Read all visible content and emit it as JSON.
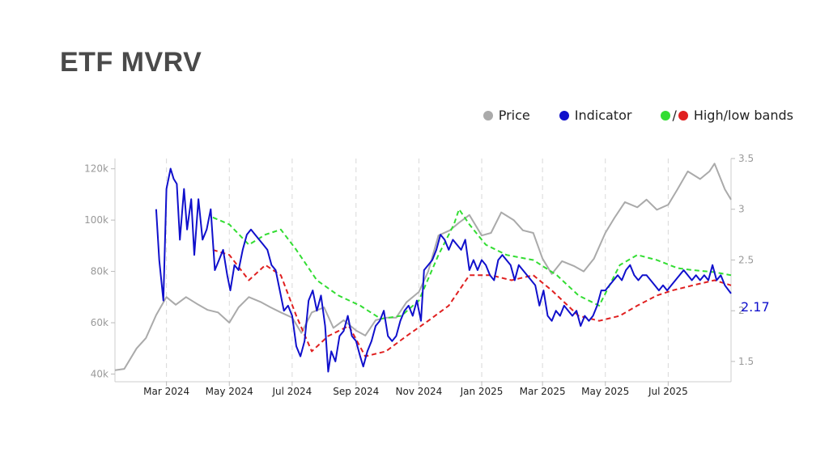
{
  "title": "ETF MVRV",
  "legend": {
    "price": "Price",
    "indicator": "Indicator",
    "bands": "High/low bands",
    "separator": "/"
  },
  "colors": {
    "price": "#aaaaaa",
    "indicator": "#1010cc",
    "high_band": "#33dd33",
    "low_band": "#e02020"
  },
  "chart_data": {
    "type": "line",
    "x_start": "2024-01-11",
    "x_end": "2025-08-31",
    "x_tick_labels": [
      "Mar 2024",
      "May 2024",
      "Jul 2024",
      "Sep 2024",
      "Nov 2024",
      "Jan 2025",
      "Mar 2025",
      "May 2025",
      "Jul 2025"
    ],
    "x_ticks": [
      "2024-03-01",
      "2024-05-01",
      "2024-07-01",
      "2024-09-01",
      "2024-11-01",
      "2025-01-01",
      "2025-03-01",
      "2025-05-01",
      "2025-07-01"
    ],
    "left_axis": {
      "label": "",
      "range": [
        37000,
        124000
      ],
      "ticks": [
        40000,
        60000,
        80000,
        100000,
        120000
      ],
      "tick_labels": [
        "40k",
        "60k",
        "80k",
        "100k",
        "120k"
      ]
    },
    "right_axis": {
      "label": "",
      "range": [
        1.3,
        3.5
      ],
      "ticks": [
        1.5,
        2,
        2.5,
        3,
        3.5
      ],
      "tick_labels": [
        "1.5",
        "2",
        "2.5",
        "3",
        "3.5"
      ]
    },
    "last_value_label": "2.17",
    "grid": "vertical dashed",
    "legend_position": "top-right",
    "series": [
      {
        "name": "Price",
        "axis": "left",
        "points": [
          [
            "2024-01-11",
            41500
          ],
          [
            "2024-01-20",
            42000
          ],
          [
            "2024-02-01",
            50000
          ],
          [
            "2024-02-10",
            54000
          ],
          [
            "2024-02-20",
            63000
          ],
          [
            "2024-03-01",
            70000
          ],
          [
            "2024-03-10",
            67000
          ],
          [
            "2024-03-20",
            70000
          ],
          [
            "2024-04-01",
            67000
          ],
          [
            "2024-04-10",
            65000
          ],
          [
            "2024-04-20",
            64000
          ],
          [
            "2024-05-01",
            60000
          ],
          [
            "2024-05-10",
            66000
          ],
          [
            "2024-05-20",
            70000
          ],
          [
            "2024-06-01",
            68000
          ],
          [
            "2024-06-10",
            66000
          ],
          [
            "2024-06-20",
            64000
          ],
          [
            "2024-07-01",
            62000
          ],
          [
            "2024-07-10",
            56000
          ],
          [
            "2024-07-20",
            64000
          ],
          [
            "2024-08-01",
            66000
          ],
          [
            "2024-08-10",
            58000
          ],
          [
            "2024-08-20",
            61000
          ],
          [
            "2024-09-01",
            57000
          ],
          [
            "2024-09-10",
            55000
          ],
          [
            "2024-09-20",
            61000
          ],
          [
            "2024-10-01",
            62000
          ],
          [
            "2024-10-10",
            62000
          ],
          [
            "2024-10-20",
            68000
          ],
          [
            "2024-11-01",
            72000
          ],
          [
            "2024-11-10",
            80000
          ],
          [
            "2024-11-20",
            94000
          ],
          [
            "2024-12-01",
            96000
          ],
          [
            "2024-12-10",
            99000
          ],
          [
            "2024-12-20",
            102000
          ],
          [
            "2025-01-01",
            94000
          ],
          [
            "2025-01-10",
            95000
          ],
          [
            "2025-01-20",
            103000
          ],
          [
            "2025-02-01",
            100000
          ],
          [
            "2025-02-10",
            96000
          ],
          [
            "2025-02-20",
            95000
          ],
          [
            "2025-03-01",
            85000
          ],
          [
            "2025-03-10",
            79000
          ],
          [
            "2025-03-20",
            84000
          ],
          [
            "2025-04-01",
            82000
          ],
          [
            "2025-04-10",
            80000
          ],
          [
            "2025-04-20",
            85000
          ],
          [
            "2025-05-01",
            95000
          ],
          [
            "2025-05-10",
            101000
          ],
          [
            "2025-05-20",
            107000
          ],
          [
            "2025-06-01",
            105000
          ],
          [
            "2025-06-10",
            108000
          ],
          [
            "2025-06-20",
            104000
          ],
          [
            "2025-07-01",
            106000
          ],
          [
            "2025-07-10",
            112000
          ],
          [
            "2025-07-20",
            119000
          ],
          [
            "2025-08-01",
            116000
          ],
          [
            "2025-08-10",
            119000
          ],
          [
            "2025-08-15",
            122000
          ],
          [
            "2025-08-25",
            112000
          ],
          [
            "2025-08-31",
            108000
          ]
        ]
      },
      {
        "name": "Indicator",
        "axis": "right",
        "points": [
          [
            "2024-02-20",
            3.0
          ],
          [
            "2024-02-23",
            2.5
          ],
          [
            "2024-02-27",
            2.1
          ],
          [
            "2024-03-01",
            3.2
          ],
          [
            "2024-03-05",
            3.4
          ],
          [
            "2024-03-08",
            3.3
          ],
          [
            "2024-03-11",
            3.25
          ],
          [
            "2024-03-14",
            2.7
          ],
          [
            "2024-03-18",
            3.2
          ],
          [
            "2024-03-21",
            2.8
          ],
          [
            "2024-03-25",
            3.1
          ],
          [
            "2024-03-28",
            2.55
          ],
          [
            "2024-04-01",
            3.1
          ],
          [
            "2024-04-05",
            2.7
          ],
          [
            "2024-04-09",
            2.8
          ],
          [
            "2024-04-13",
            3.0
          ],
          [
            "2024-04-17",
            2.4
          ],
          [
            "2024-04-21",
            2.5
          ],
          [
            "2024-04-25",
            2.6
          ],
          [
            "2024-04-29",
            2.35
          ],
          [
            "2024-05-02",
            2.2
          ],
          [
            "2024-05-06",
            2.45
          ],
          [
            "2024-05-10",
            2.4
          ],
          [
            "2024-05-14",
            2.6
          ],
          [
            "2024-05-18",
            2.75
          ],
          [
            "2024-05-22",
            2.8
          ],
          [
            "2024-05-26",
            2.75
          ],
          [
            "2024-05-30",
            2.7
          ],
          [
            "2024-06-03",
            2.65
          ],
          [
            "2024-06-07",
            2.6
          ],
          [
            "2024-06-11",
            2.45
          ],
          [
            "2024-06-15",
            2.4
          ],
          [
            "2024-06-19",
            2.2
          ],
          [
            "2024-06-23",
            2.0
          ],
          [
            "2024-06-27",
            2.05
          ],
          [
            "2024-07-01",
            1.95
          ],
          [
            "2024-07-05",
            1.65
          ],
          [
            "2024-07-09",
            1.55
          ],
          [
            "2024-07-13",
            1.7
          ],
          [
            "2024-07-17",
            2.1
          ],
          [
            "2024-07-21",
            2.2
          ],
          [
            "2024-07-25",
            2.0
          ],
          [
            "2024-07-29",
            2.15
          ],
          [
            "2024-08-02",
            1.85
          ],
          [
            "2024-08-05",
            1.4
          ],
          [
            "2024-08-08",
            1.6
          ],
          [
            "2024-08-12",
            1.5
          ],
          [
            "2024-08-16",
            1.75
          ],
          [
            "2024-08-20",
            1.8
          ],
          [
            "2024-08-24",
            1.95
          ],
          [
            "2024-08-28",
            1.75
          ],
          [
            "2024-09-01",
            1.7
          ],
          [
            "2024-09-05",
            1.55
          ],
          [
            "2024-09-08",
            1.45
          ],
          [
            "2024-09-12",
            1.6
          ],
          [
            "2024-09-16",
            1.7
          ],
          [
            "2024-09-20",
            1.85
          ],
          [
            "2024-09-24",
            1.9
          ],
          [
            "2024-09-28",
            2.0
          ],
          [
            "2024-10-02",
            1.75
          ],
          [
            "2024-10-06",
            1.7
          ],
          [
            "2024-10-10",
            1.75
          ],
          [
            "2024-10-14",
            1.9
          ],
          [
            "2024-10-18",
            2.0
          ],
          [
            "2024-10-22",
            2.05
          ],
          [
            "2024-10-26",
            1.95
          ],
          [
            "2024-10-30",
            2.1
          ],
          [
            "2024-11-03",
            1.9
          ],
          [
            "2024-11-06",
            2.4
          ],
          [
            "2024-11-10",
            2.45
          ],
          [
            "2024-11-14",
            2.5
          ],
          [
            "2024-11-18",
            2.6
          ],
          [
            "2024-11-22",
            2.75
          ],
          [
            "2024-11-26",
            2.7
          ],
          [
            "2024-11-30",
            2.6
          ],
          [
            "2024-12-04",
            2.7
          ],
          [
            "2024-12-08",
            2.65
          ],
          [
            "2024-12-12",
            2.6
          ],
          [
            "2024-12-16",
            2.7
          ],
          [
            "2024-12-20",
            2.4
          ],
          [
            "2024-12-24",
            2.5
          ],
          [
            "2024-12-28",
            2.4
          ],
          [
            "2025-01-01",
            2.5
          ],
          [
            "2025-01-05",
            2.45
          ],
          [
            "2025-01-09",
            2.35
          ],
          [
            "2025-01-13",
            2.3
          ],
          [
            "2025-01-17",
            2.5
          ],
          [
            "2025-01-21",
            2.55
          ],
          [
            "2025-01-25",
            2.5
          ],
          [
            "2025-01-29",
            2.45
          ],
          [
            "2025-02-02",
            2.3
          ],
          [
            "2025-02-06",
            2.45
          ],
          [
            "2025-02-10",
            2.4
          ],
          [
            "2025-02-14",
            2.35
          ],
          [
            "2025-02-18",
            2.3
          ],
          [
            "2025-02-22",
            2.25
          ],
          [
            "2025-02-26",
            2.05
          ],
          [
            "2025-03-02",
            2.2
          ],
          [
            "2025-03-06",
            1.95
          ],
          [
            "2025-03-10",
            1.9
          ],
          [
            "2025-03-14",
            2.0
          ],
          [
            "2025-03-18",
            1.95
          ],
          [
            "2025-03-22",
            2.05
          ],
          [
            "2025-03-26",
            2.0
          ],
          [
            "2025-03-30",
            1.95
          ],
          [
            "2025-04-03",
            2.0
          ],
          [
            "2025-04-07",
            1.85
          ],
          [
            "2025-04-11",
            1.95
          ],
          [
            "2025-04-15",
            1.9
          ],
          [
            "2025-04-19",
            1.95
          ],
          [
            "2025-04-23",
            2.05
          ],
          [
            "2025-04-27",
            2.2
          ],
          [
            "2025-05-01",
            2.2
          ],
          [
            "2025-05-05",
            2.25
          ],
          [
            "2025-05-09",
            2.3
          ],
          [
            "2025-05-13",
            2.35
          ],
          [
            "2025-05-17",
            2.3
          ],
          [
            "2025-05-21",
            2.4
          ],
          [
            "2025-05-25",
            2.45
          ],
          [
            "2025-05-29",
            2.35
          ],
          [
            "2025-06-02",
            2.3
          ],
          [
            "2025-06-06",
            2.35
          ],
          [
            "2025-06-10",
            2.35
          ],
          [
            "2025-06-14",
            2.3
          ],
          [
            "2025-06-18",
            2.25
          ],
          [
            "2025-06-22",
            2.2
          ],
          [
            "2025-06-26",
            2.25
          ],
          [
            "2025-06-30",
            2.2
          ],
          [
            "2025-07-04",
            2.25
          ],
          [
            "2025-07-08",
            2.3
          ],
          [
            "2025-07-12",
            2.35
          ],
          [
            "2025-07-16",
            2.4
          ],
          [
            "2025-07-20",
            2.35
          ],
          [
            "2025-07-24",
            2.3
          ],
          [
            "2025-07-28",
            2.35
          ],
          [
            "2025-08-01",
            2.3
          ],
          [
            "2025-08-05",
            2.35
          ],
          [
            "2025-08-09",
            2.3
          ],
          [
            "2025-08-13",
            2.45
          ],
          [
            "2025-08-17",
            2.3
          ],
          [
            "2025-08-21",
            2.35
          ],
          [
            "2025-08-25",
            2.25
          ],
          [
            "2025-08-31",
            2.17
          ]
        ]
      },
      {
        "name": "High band",
        "axis": "right",
        "points": [
          [
            "2024-04-15",
            2.92
          ],
          [
            "2024-05-01",
            2.85
          ],
          [
            "2024-05-20",
            2.65
          ],
          [
            "2024-06-05",
            2.75
          ],
          [
            "2024-06-20",
            2.8
          ],
          [
            "2024-07-05",
            2.6
          ],
          [
            "2024-07-25",
            2.3
          ],
          [
            "2024-08-15",
            2.15
          ],
          [
            "2024-09-05",
            2.05
          ],
          [
            "2024-09-25",
            1.92
          ],
          [
            "2024-10-15",
            1.95
          ],
          [
            "2024-11-01",
            2.1
          ],
          [
            "2024-11-20",
            2.55
          ],
          [
            "2024-12-05",
            2.85
          ],
          [
            "2024-12-10",
            3.0
          ],
          [
            "2024-12-20",
            2.85
          ],
          [
            "2025-01-05",
            2.65
          ],
          [
            "2025-01-25",
            2.55
          ],
          [
            "2025-02-20",
            2.5
          ],
          [
            "2025-03-15",
            2.35
          ],
          [
            "2025-04-05",
            2.15
          ],
          [
            "2025-04-25",
            2.05
          ],
          [
            "2025-05-15",
            2.45
          ],
          [
            "2025-06-01",
            2.55
          ],
          [
            "2025-06-20",
            2.5
          ],
          [
            "2025-07-10",
            2.42
          ],
          [
            "2025-07-25",
            2.4
          ],
          [
            "2025-08-15",
            2.38
          ],
          [
            "2025-08-31",
            2.35
          ]
        ]
      },
      {
        "name": "Low band",
        "axis": "right",
        "points": [
          [
            "2024-04-15",
            2.6
          ],
          [
            "2024-05-01",
            2.55
          ],
          [
            "2024-05-20",
            2.3
          ],
          [
            "2024-06-05",
            2.45
          ],
          [
            "2024-06-20",
            2.35
          ],
          [
            "2024-07-05",
            1.95
          ],
          [
            "2024-07-20",
            1.6
          ],
          [
            "2024-08-05",
            1.75
          ],
          [
            "2024-08-25",
            1.85
          ],
          [
            "2024-09-10",
            1.55
          ],
          [
            "2024-09-30",
            1.6
          ],
          [
            "2024-10-20",
            1.75
          ],
          [
            "2024-11-10",
            1.9
          ],
          [
            "2024-11-30",
            2.05
          ],
          [
            "2024-12-20",
            2.35
          ],
          [
            "2025-01-10",
            2.35
          ],
          [
            "2025-01-30",
            2.3
          ],
          [
            "2025-02-20",
            2.35
          ],
          [
            "2025-03-10",
            2.2
          ],
          [
            "2025-04-05",
            1.95
          ],
          [
            "2025-04-25",
            1.9
          ],
          [
            "2025-05-15",
            1.95
          ],
          [
            "2025-06-01",
            2.05
          ],
          [
            "2025-06-20",
            2.15
          ],
          [
            "2025-07-05",
            2.2
          ],
          [
            "2025-07-25",
            2.25
          ],
          [
            "2025-08-15",
            2.3
          ],
          [
            "2025-08-31",
            2.25
          ]
        ]
      }
    ]
  }
}
